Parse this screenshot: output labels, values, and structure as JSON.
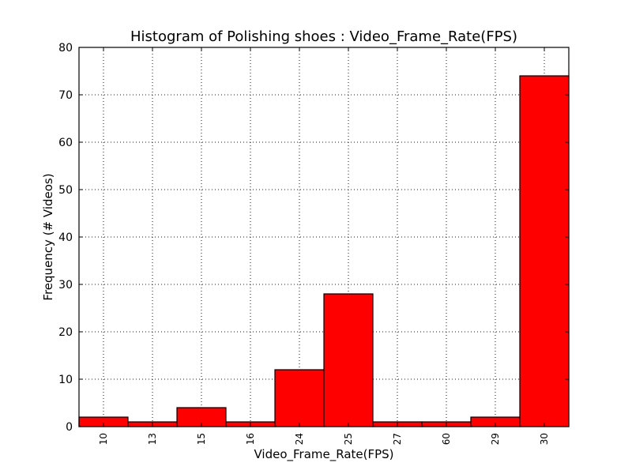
{
  "chart_data": {
    "type": "bar",
    "title": "Histogram of Polishing shoes : Video_Frame_Rate(FPS)",
    "xlabel": "Video_Frame_Rate(FPS)",
    "ylabel": "Frequency (# Videos)",
    "categories": [
      "10",
      "13",
      "15",
      "16",
      "24",
      "25",
      "27",
      "60",
      "29",
      "30"
    ],
    "values": [
      2,
      1,
      4,
      1,
      12,
      28,
      1,
      1,
      2,
      74
    ],
    "ylim": [
      0,
      80
    ],
    "yticks": [
      0,
      10,
      20,
      30,
      40,
      50,
      60,
      70,
      80
    ],
    "grid": true,
    "legend": "none",
    "bar_color": "#ff0000",
    "edge_color": "#000000"
  }
}
